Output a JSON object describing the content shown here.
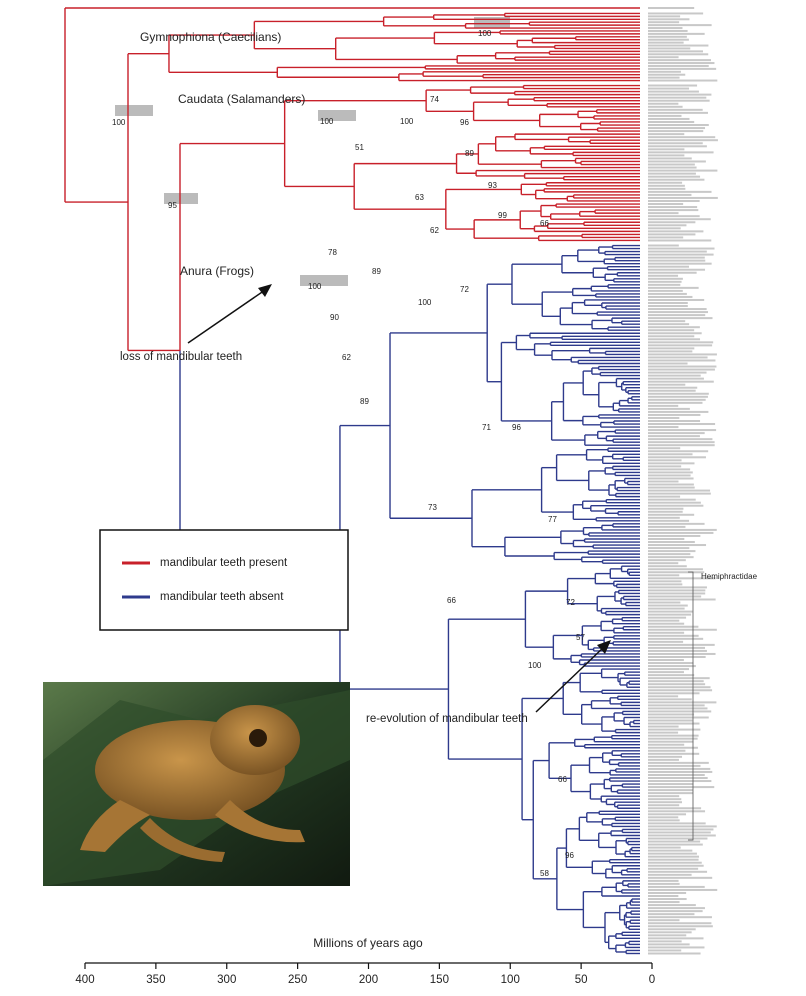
{
  "labels": {
    "gymnophiona": "Gymnophiona (Caecilians)",
    "caudata": "Caudata (Salamanders)",
    "anura": "Anura (Frogs)",
    "loss": "loss of mandibular teeth",
    "reevolution": "re-evolution of mandibular teeth",
    "family": "Hemiphractidae"
  },
  "legend": [
    {
      "label": "mandibular teeth present",
      "color": "#c8202a"
    },
    {
      "label": "mandibular teeth absent",
      "color": "#2e3a8c"
    }
  ],
  "axis": {
    "label": "Millions of years ago",
    "ticks": [
      400,
      350,
      300,
      250,
      200,
      150,
      100,
      50,
      0
    ]
  },
  "node_support": [
    100,
    95,
    100,
    100,
    100,
    78,
    90,
    62,
    89,
    73,
    66,
    100,
    100,
    74,
    51,
    63,
    62,
    96,
    89,
    93,
    99,
    66,
    89,
    100,
    72,
    71,
    96,
    77,
    72,
    57,
    58,
    96,
    66
  ]
}
